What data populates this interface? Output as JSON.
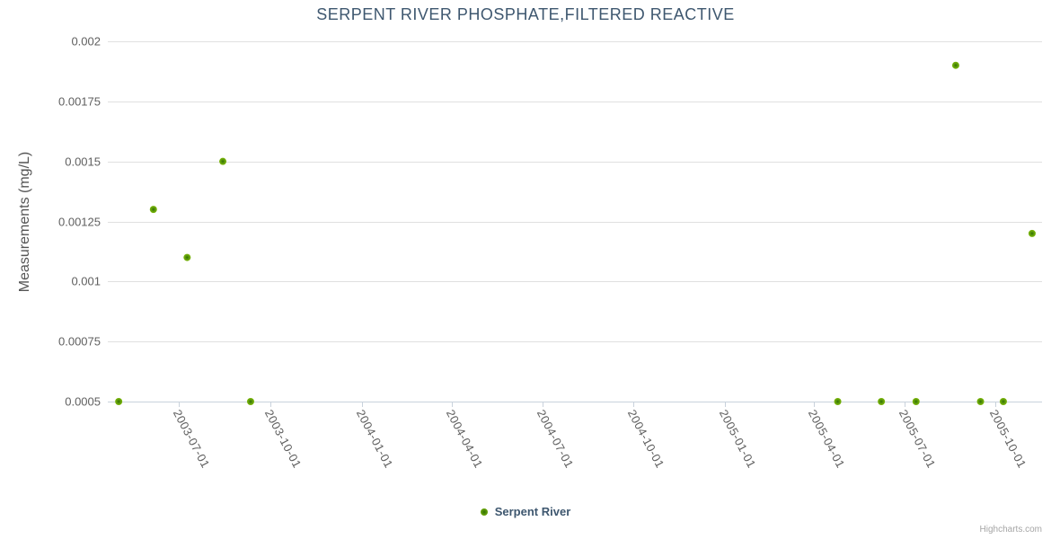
{
  "chart": {
    "credits": "Highcharts.com"
  },
  "colors": {
    "marker_outer": "#7DB908",
    "marker_mid": "#57940A",
    "marker_center": "#2E6F02",
    "title_text": "#3E576F",
    "axis_label_text": "#606060",
    "gridline": "#E0E0E0",
    "axis_line": "#C9D2DC"
  },
  "chart_data": {
    "type": "scatter",
    "title": "SERPENT RIVER PHOSPHATE,FILTERED REACTIVE",
    "xlabel": "",
    "ylabel": "Measurements (mg/L)",
    "xlim": [
      "2003-04-20",
      "2005-11-17"
    ],
    "ylim": [
      0.0005,
      0.002
    ],
    "grid": "horizontal",
    "legend_position": "bottom-center",
    "x_ticks": [
      {
        "date": "2003-07-01",
        "label": "2003-07-01"
      },
      {
        "date": "2003-10-01",
        "label": "2003-10-01"
      },
      {
        "date": "2004-01-01",
        "label": "2004-01-01"
      },
      {
        "date": "2004-04-01",
        "label": "2004-04-01"
      },
      {
        "date": "2004-07-01",
        "label": "2004-07-01"
      },
      {
        "date": "2004-10-01",
        "label": "2004-10-01"
      },
      {
        "date": "2005-01-01",
        "label": "2005-01-01"
      },
      {
        "date": "2005-04-01",
        "label": "2005-04-01"
      },
      {
        "date": "2005-07-01",
        "label": "2005-07-01"
      },
      {
        "date": "2005-10-01",
        "label": "2005-10-01"
      }
    ],
    "y_ticks": [
      {
        "value": 0.0005,
        "label": "0.0005"
      },
      {
        "value": 0.00075,
        "label": "0.00075"
      },
      {
        "value": 0.001,
        "label": "0.001"
      },
      {
        "value": 0.00125,
        "label": "0.00125"
      },
      {
        "value": 0.0015,
        "label": "0.0015"
      },
      {
        "value": 0.00175,
        "label": "0.00175"
      },
      {
        "value": 0.002,
        "label": "0.002"
      }
    ],
    "series": [
      {
        "name": "Serpent River",
        "color": "#7DB908",
        "points": [
          {
            "date": "2003-05-01",
            "value": 0.0005
          },
          {
            "date": "2003-06-05",
            "value": 0.0013
          },
          {
            "date": "2003-07-09",
            "value": 0.0011
          },
          {
            "date": "2003-08-14",
            "value": 0.0015
          },
          {
            "date": "2003-09-11",
            "value": 0.0005
          },
          {
            "date": "2005-04-25",
            "value": 0.0005
          },
          {
            "date": "2005-06-08",
            "value": 0.0005
          },
          {
            "date": "2005-07-13",
            "value": 0.0005
          },
          {
            "date": "2005-08-22",
            "value": 0.0019
          },
          {
            "date": "2005-09-16",
            "value": 0.0005
          },
          {
            "date": "2005-10-09",
            "value": 0.0005
          },
          {
            "date": "2005-11-07",
            "value": 0.0012
          }
        ]
      }
    ]
  }
}
